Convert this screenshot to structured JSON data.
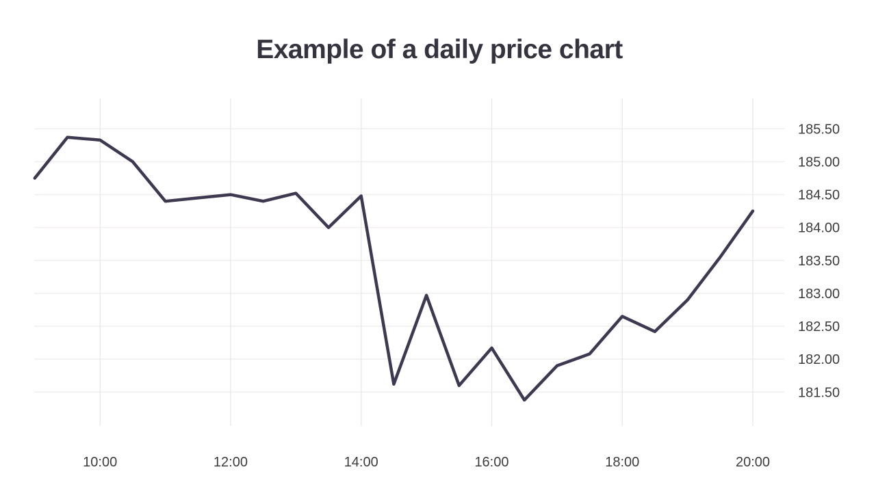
{
  "page": {
    "background": "#ffffff"
  },
  "chart_data": {
    "type": "line",
    "title": "Example of a daily price chart",
    "xlabel": "",
    "ylabel": "",
    "x": [
      "09:00",
      "09:30",
      "10:00",
      "10:30",
      "11:00",
      "11:30",
      "12:00",
      "12:30",
      "13:00",
      "13:30",
      "14:00",
      "14:30",
      "15:00",
      "15:30",
      "16:00",
      "16:30",
      "17:00",
      "17:30",
      "18:00",
      "18:30",
      "19:00",
      "19:30",
      "20:00"
    ],
    "values": [
      184.75,
      185.37,
      185.33,
      185.0,
      184.4,
      184.45,
      184.5,
      184.4,
      184.52,
      184.0,
      184.48,
      181.62,
      182.97,
      181.6,
      182.17,
      181.38,
      181.9,
      182.08,
      182.65,
      182.42,
      182.9,
      183.55,
      184.25
    ],
    "x_tick_labels": [
      "10:00",
      "12:00",
      "14:00",
      "16:00",
      "18:00",
      "20:00"
    ],
    "y_tick_labels": [
      "185.50",
      "185.00",
      "184.50",
      "184.00",
      "183.50",
      "183.00",
      "182.50",
      "182.00",
      "181.50"
    ],
    "xlim_hours": [
      9.0,
      20.0
    ],
    "ylim": [
      181.0,
      185.95
    ],
    "grid": "on",
    "legend": "none",
    "y_axis_side": "right",
    "colors": {
      "line": "#3e3951",
      "h_grid": "#f1eeec",
      "v_grid": "#e6e6e6",
      "tick_label": "#3c3c3c",
      "title": "#35333e",
      "background": "#ffffff"
    }
  }
}
